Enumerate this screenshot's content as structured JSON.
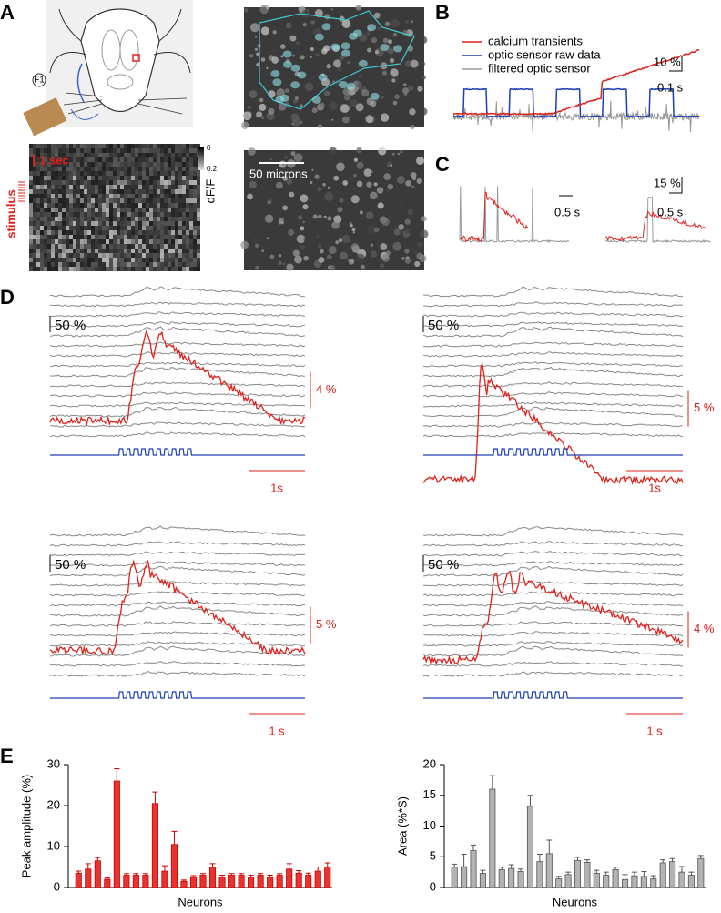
{
  "panel_letters": [
    "A",
    "B",
    "C",
    "D",
    "E"
  ],
  "panel_a": {
    "electrode": "F1",
    "time_scale": "1 sec",
    "stimulus": "stimulus",
    "colorbar_ticks": [
      0,
      0.2
    ],
    "colorbar_label": "dF/F",
    "scale_bar": "50 microns"
  },
  "panel_b": {
    "legend": [
      "calcium transients",
      "optic sensor raw data",
      "filtered optic sensor"
    ],
    "scale_y": "10 %",
    "scale_x": "0.1 s"
  },
  "panel_c": {
    "left_scale_x": "0.5 s",
    "right_scale_y": "15 %",
    "right_scale_x": "0.5 s"
  },
  "panel_d": [
    {
      "gray_scale": "50 %",
      "red_scale": "4 %",
      "time_scale": "1s"
    },
    {
      "gray_scale": "50 %",
      "red_scale": "5 %",
      "time_scale": "1s"
    },
    {
      "gray_scale": "50 %",
      "red_scale": "5 %",
      "time_scale": "1 s"
    },
    {
      "gray_scale": "50 %",
      "red_scale": "4 %",
      "time_scale": "1 s"
    }
  ],
  "chart_data": [
    {
      "type": "bar",
      "ylabel": "Peak amplitude (%)",
      "xlabel": "Neurons",
      "color": "#e8332e",
      "values": [
        3.5,
        4.5,
        6.5,
        2,
        26,
        3,
        3,
        3,
        20.5,
        4,
        10.5,
        1.5,
        2.5,
        3,
        5,
        2.5,
        3,
        3,
        2.5,
        3,
        2.5,
        3,
        4.5,
        3.5,
        3,
        4,
        5
      ],
      "errors": [
        0.5,
        1.3,
        0.8,
        0.3,
        3,
        0.4,
        0.4,
        0.4,
        2.8,
        1.3,
        3.2,
        0.3,
        0.4,
        0.4,
        0.8,
        0.5,
        0.4,
        0.4,
        0.5,
        0.4,
        0.5,
        0.4,
        1.3,
        0.6,
        0.5,
        1,
        1
      ],
      "ylim": [
        0,
        30
      ],
      "yticks": [
        0,
        10,
        20,
        30
      ]
    },
    {
      "type": "bar",
      "ylabel": "Area (%*S)",
      "xlabel": "Neurons",
      "color": "#b3b3b3",
      "values": [
        3.3,
        3.4,
        6,
        2.3,
        16,
        2.9,
        3.1,
        2.6,
        13.2,
        4.2,
        5.5,
        1.4,
        2.1,
        4.4,
        4.1,
        2.3,
        2,
        2.9,
        1.3,
        1.9,
        1.8,
        1.4,
        4,
        4.2,
        2.5,
        2,
        4.7
      ],
      "errors": [
        0.5,
        2,
        0.9,
        0.5,
        2.2,
        0.4,
        0.6,
        0.4,
        1.8,
        1.2,
        2.2,
        0.4,
        0.4,
        0.5,
        0.4,
        0.5,
        0.5,
        0.4,
        0.8,
        0.6,
        0.8,
        0.5,
        0.5,
        0.5,
        0.9,
        0.5,
        0.5
      ],
      "ylim": [
        0,
        20
      ],
      "yticks": [
        0,
        5,
        10,
        15,
        20
      ]
    }
  ]
}
